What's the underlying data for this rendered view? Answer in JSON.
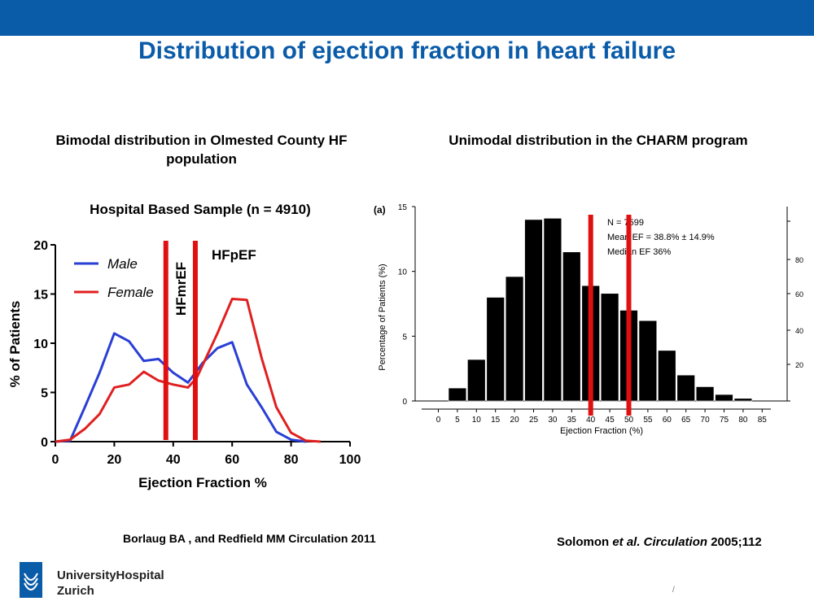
{
  "title": "Distribution of ejection fraction in heart failure",
  "left_panel": {
    "subtitle": "Bimodal distribution in Olmested County HF population",
    "citation": "Borlaug BA , and Redfield MM Circulation 2011"
  },
  "right_panel": {
    "subtitle": "Unimodal distribution in the CHARM program",
    "citation_author": "Solomon ",
    "citation_etal": "et al. Circulation",
    "citation_rest": " 2005;112"
  },
  "branding": {
    "line1": "UniversityHospital",
    "line2": "Zurich",
    "page_mark": "/"
  },
  "colors": {
    "brand": "#0a5ba8",
    "male": "#2a3fd4",
    "female": "#e02020",
    "marker": "#e01010"
  },
  "chart_data": [
    {
      "type": "line",
      "title": "Hospital Based Sample (n = 4910)",
      "xlabel": "Ejection Fraction %",
      "ylabel": "% of Patients",
      "xlim": [
        0,
        100
      ],
      "ylim": [
        0,
        20
      ],
      "xticks": [
        0,
        20,
        40,
        60,
        80,
        100
      ],
      "yticks": [
        0,
        5,
        10,
        15,
        20
      ],
      "legend": {
        "placement": "top-left"
      },
      "series": [
        {
          "name": "Male",
          "x": [
            0,
            5,
            10,
            15,
            20,
            25,
            30,
            35,
            40,
            45,
            50,
            55,
            60,
            65,
            70,
            75,
            80,
            85
          ],
          "y": [
            0,
            0.1,
            3.5,
            7.0,
            11.0,
            10.2,
            8.2,
            8.4,
            7.0,
            6.0,
            8.0,
            9.5,
            10.1,
            5.8,
            3.5,
            1.0,
            0.2,
            0
          ]
        },
        {
          "name": "Female",
          "x": [
            0,
            5,
            10,
            15,
            20,
            25,
            30,
            35,
            40,
            45,
            48,
            55,
            60,
            65,
            70,
            75,
            80,
            85,
            90
          ],
          "y": [
            0,
            0.2,
            1.3,
            2.8,
            5.5,
            5.8,
            7.1,
            6.2,
            5.8,
            5.5,
            6.5,
            11.0,
            14.5,
            14.4,
            8.5,
            3.5,
            0.9,
            0.1,
            0
          ]
        }
      ],
      "markers": [
        {
          "x": 37.5,
          "label": "HFmrEF"
        },
        {
          "x": 47.5,
          "label": "HFpEF"
        }
      ]
    },
    {
      "type": "bar",
      "panel_label": "(a)",
      "xlabel": "Ejection Fraction (%)",
      "ylabel": "Percentage of Patients (%)",
      "categories": [
        0,
        5,
        10,
        15,
        20,
        25,
        30,
        35,
        40,
        45,
        50,
        55,
        60,
        65,
        70,
        75,
        80,
        85
      ],
      "values": [
        0,
        1.0,
        3.2,
        8.0,
        9.6,
        14.0,
        14.1,
        11.5,
        8.9,
        8.3,
        7.0,
        6.2,
        3.9,
        2.0,
        1.1,
        0.5,
        0.2,
        0
      ],
      "ylim": [
        0,
        15
      ],
      "yticks": [
        0,
        5,
        10,
        15
      ],
      "right_axis_ticks": [
        20,
        40,
        60,
        80
      ],
      "annotations": [
        "N = 7599",
        "Mean EF = 38.8% ± 14.9%",
        "Median EF 36%"
      ],
      "markers": [
        40,
        50
      ]
    }
  ]
}
